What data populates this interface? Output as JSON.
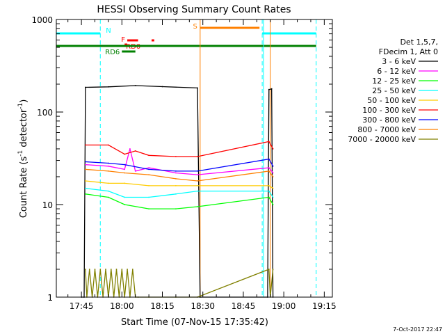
{
  "footer": {
    "timestamp": "7-Oct-2017 22:47"
  },
  "chart_data": {
    "type": "line",
    "title": "HESSI Observing Summary Count Rates",
    "xlabel": "Start Time (07-Nov-15 17:35:42)",
    "ylabel_main": "Count Rate (s",
    "ylabel_sup1": "-1",
    "ylabel_mid": " detector",
    "ylabel_sup2": "-1",
    "ylabel_end": ")",
    "xlim": [
      "17:35:42",
      "19:18:00"
    ],
    "ylim": [
      1,
      1000
    ],
    "y_scale": "log",
    "x_ticks": [
      "17:45",
      "18:00",
      "18:15",
      "18:30",
      "18:45",
      "19:00",
      "19:15"
    ],
    "x_tick_minutes": [
      1065,
      1080,
      1095,
      1110,
      1125,
      1140,
      1155
    ],
    "y_ticks": [
      {
        "label": "1",
        "value": 1
      },
      {
        "label": "10",
        "value": 10
      },
      {
        "label": "100",
        "value": 100
      },
      {
        "label": "1000",
        "value": 1000
      }
    ],
    "legend": {
      "position": "right",
      "header": [
        "Det 1,5,7,",
        "FDecim 1, Att 0"
      ],
      "entries": [
        {
          "label": "3 - 6 keV",
          "color": "#000000"
        },
        {
          "label": "6 - 12 keV",
          "color": "#ff00ff"
        },
        {
          "label": "12 - 25 keV",
          "color": "#00ff00"
        },
        {
          "label": "25 - 50 keV",
          "color": "#00ffff"
        },
        {
          "label": "50 - 100 keV",
          "color": "#ffcc00"
        },
        {
          "label": "100 - 300 keV",
          "color": "#ff0000"
        },
        {
          "label": "300 - 800 keV",
          "color": "#0000ff"
        },
        {
          "label": "800 - 7000 keV",
          "color": "#ff8000"
        },
        {
          "label": "7000 - 20000 keV",
          "color": "#808000"
        }
      ]
    },
    "flag_bars": [
      {
        "label": "N",
        "color": "#00ffff",
        "segments": [
          [
            "17:35:42",
            "17:52"
          ],
          [
            "18:52",
            "19:12"
          ]
        ]
      },
      {
        "label": "S",
        "color": "#ff8000",
        "segments": [
          [
            "18:29",
            "18:51"
          ]
        ]
      },
      {
        "label": "F",
        "color": "#ff0000",
        "segments": [
          [
            "18:02",
            "18:06"
          ],
          [
            "18:11",
            "18:12"
          ]
        ]
      },
      {
        "label": "RD0",
        "color": "#ff0000",
        "segments": [
          [
            "18:01",
            "18:02"
          ]
        ]
      },
      {
        "label": "RD6",
        "color": "#008000",
        "segments": [
          [
            "18:00",
            "18:05"
          ]
        ]
      },
      {
        "label": "",
        "color": "#008000",
        "segments": [
          [
            "17:35:42",
            "19:12"
          ]
        ]
      }
    ],
    "vertical_markers": [
      {
        "time": "17:35:42",
        "color": "#00ffff",
        "style": "solid"
      },
      {
        "time": "17:52",
        "color": "#00ffff",
        "style": "dashed"
      },
      {
        "time": "18:29",
        "color": "#ff8000",
        "style": "solid"
      },
      {
        "time": "18:52",
        "color": "#00ffff",
        "style": "dashed"
      },
      {
        "time": "18:52:30",
        "color": "#00ffff",
        "style": "solid"
      },
      {
        "time": "18:55",
        "color": "#ff8000",
        "style": "solid"
      },
      {
        "time": "19:12",
        "color": "#00ffff",
        "style": "dashed"
      }
    ],
    "series": [
      {
        "name": "3 - 6 keV",
        "color": "#000000",
        "x": [
          "17:45",
          "17:46",
          "17:46:30",
          "17:55",
          "18:05",
          "18:15",
          "18:28",
          "18:29",
          "18:54",
          "18:54:30",
          "18:55:30",
          "18:56"
        ],
        "y": [
          1,
          1,
          185,
          187,
          193,
          188,
          182,
          1,
          1,
          175,
          178,
          1
        ]
      },
      {
        "name": "6 - 12 keV",
        "color": "#ff00ff",
        "x": [
          "17:46:30",
          "17:55",
          "18:01",
          "18:03",
          "18:05",
          "18:10",
          "18:20",
          "18:28",
          "18:54:30",
          "18:56"
        ],
        "y": [
          27,
          26,
          24,
          40,
          23,
          25,
          22,
          21,
          25,
          22
        ]
      },
      {
        "name": "12 - 25 keV",
        "color": "#00ff00",
        "x": [
          "17:46:30",
          "17:55",
          "18:01",
          "18:10",
          "18:20",
          "18:28",
          "18:54:30",
          "18:56"
        ],
        "y": [
          13,
          12,
          10,
          9,
          9,
          9.5,
          12,
          10
        ]
      },
      {
        "name": "25 - 50 keV",
        "color": "#00ffff",
        "x": [
          "17:46:30",
          "17:55",
          "18:01",
          "18:10",
          "18:20",
          "18:28",
          "18:54:30",
          "18:56"
        ],
        "y": [
          15,
          14,
          12,
          12,
          13,
          14,
          14,
          12
        ]
      },
      {
        "name": "50 - 100 keV",
        "color": "#ffcc00",
        "x": [
          "17:46:30",
          "17:55",
          "18:01",
          "18:10",
          "18:20",
          "18:28",
          "18:54:30",
          "18:56"
        ],
        "y": [
          18,
          17,
          17,
          16,
          16,
          16,
          16,
          15
        ]
      },
      {
        "name": "100 - 300 keV",
        "color": "#ff0000",
        "x": [
          "17:46:30",
          "17:55",
          "18:01",
          "18:05",
          "18:10",
          "18:20",
          "18:28",
          "18:54:30",
          "18:56"
        ],
        "y": [
          44,
          44,
          35,
          38,
          34,
          33,
          33,
          48,
          40
        ]
      },
      {
        "name": "300 - 800 keV",
        "color": "#0000ff",
        "x": [
          "17:46:30",
          "17:55",
          "18:01",
          "18:10",
          "18:20",
          "18:28",
          "18:54:30",
          "18:56"
        ],
        "y": [
          29,
          28,
          27,
          24,
          23,
          23,
          31,
          26
        ]
      },
      {
        "name": "800 - 7000 keV",
        "color": "#ff8000",
        "x": [
          "17:46:30",
          "17:55",
          "18:01",
          "18:10",
          "18:20",
          "18:28",
          "18:54:30",
          "18:56"
        ],
        "y": [
          24,
          23,
          22,
          21,
          19,
          18,
          23,
          20
        ]
      },
      {
        "name": "7000 - 20000 keV",
        "color": "#808000",
        "x": [
          "17:46:30",
          "17:47",
          "17:48",
          "17:49",
          "17:50",
          "17:51",
          "17:52",
          "17:53",
          "17:54",
          "17:55",
          "17:56",
          "17:57",
          "17:58",
          "17:59",
          "18:00",
          "18:01",
          "18:02",
          "18:03",
          "18:04",
          "18:05",
          "18:06",
          "18:10",
          "18:20",
          "18:28",
          "18:54:30",
          "18:55",
          "18:56"
        ],
        "y": [
          2,
          1,
          2,
          1,
          2,
          1,
          2,
          1,
          2,
          1,
          2,
          1,
          2,
          1,
          2,
          1,
          2,
          1,
          2,
          1,
          1,
          1,
          1,
          1,
          2,
          1,
          2
        ]
      }
    ]
  }
}
